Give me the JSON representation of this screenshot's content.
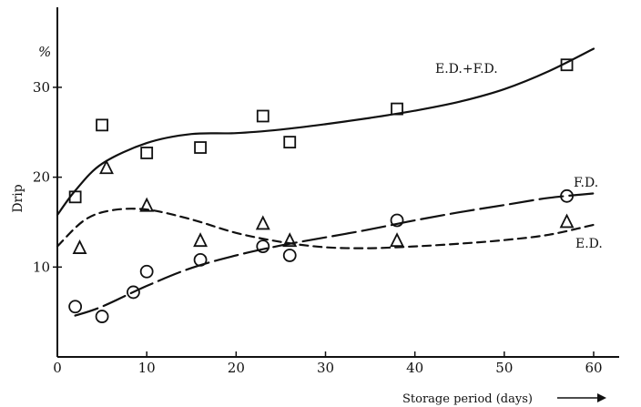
{
  "chart_data": {
    "type": "scatter",
    "title": "",
    "xlabel": "Storage period (days)",
    "ylabel": "Drip",
    "y_unit": "%",
    "xlim": [
      0,
      60
    ],
    "ylim": [
      0,
      35
    ],
    "x_ticks": [
      0,
      10,
      20,
      30,
      40,
      50,
      60
    ],
    "y_ticks": [
      10,
      20,
      30
    ],
    "grid": false,
    "series": [
      {
        "name": "E.D.+F.D.",
        "marker": "square",
        "line_style": "solid",
        "x": [
          2,
          5,
          10,
          16,
          23,
          26,
          38,
          57
        ],
        "y": [
          17.8,
          25.8,
          22.7,
          23.3,
          26.8,
          23.9,
          27.6,
          32.5
        ],
        "fit_x": [
          0,
          2,
          5,
          10,
          15,
          20,
          25,
          30,
          35,
          40,
          45,
          50,
          55,
          60
        ],
        "fit_y": [
          15.8,
          18.5,
          21.5,
          23.8,
          24.8,
          24.9,
          25.3,
          25.9,
          26.6,
          27.4,
          28.4,
          29.8,
          31.8,
          34.3
        ]
      },
      {
        "name": "F.D.",
        "marker": "circle",
        "line_style": "long-dash",
        "x": [
          2,
          5,
          8.5,
          10,
          16,
          23,
          26,
          38,
          57
        ],
        "y": [
          5.6,
          4.5,
          7.2,
          9.5,
          10.8,
          12.3,
          11.3,
          15.2,
          17.9
        ],
        "fit_x": [
          2,
          5,
          10,
          15,
          20,
          25,
          30,
          35,
          40,
          45,
          50,
          55,
          60
        ],
        "fit_y": [
          4.6,
          5.6,
          7.9,
          9.9,
          11.3,
          12.4,
          13.3,
          14.2,
          15.2,
          16.1,
          16.9,
          17.7,
          18.2
        ]
      },
      {
        "name": "E.D.",
        "marker": "triangle",
        "line_style": "short-dash",
        "x": [
          2.5,
          5.5,
          10,
          16,
          23,
          26,
          38,
          57
        ],
        "y": [
          12.1,
          21.0,
          16.8,
          12.9,
          14.8,
          12.9,
          12.9,
          15.0
        ],
        "fit_x": [
          0,
          3,
          6,
          10,
          15,
          20,
          25,
          30,
          35,
          40,
          45,
          50,
          55,
          60
        ],
        "fit_y": [
          12.3,
          15.2,
          16.3,
          16.4,
          15.3,
          13.8,
          12.8,
          12.2,
          12.1,
          12.3,
          12.6,
          13.0,
          13.6,
          14.7
        ]
      }
    ]
  }
}
